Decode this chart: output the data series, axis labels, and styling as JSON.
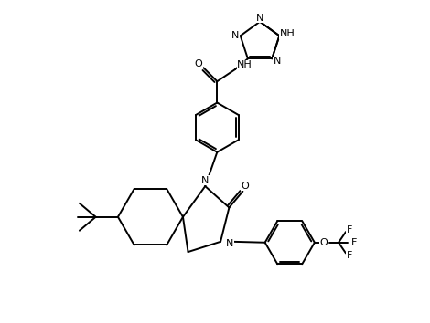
{
  "bg_color": "#ffffff",
  "line_color": "#000000",
  "lw": 1.4,
  "fs": 8.0,
  "fig_width": 4.7,
  "fig_height": 3.54,
  "dpi": 100,
  "xlim": [
    0,
    10
  ],
  "ylim": [
    0,
    7.5
  ]
}
